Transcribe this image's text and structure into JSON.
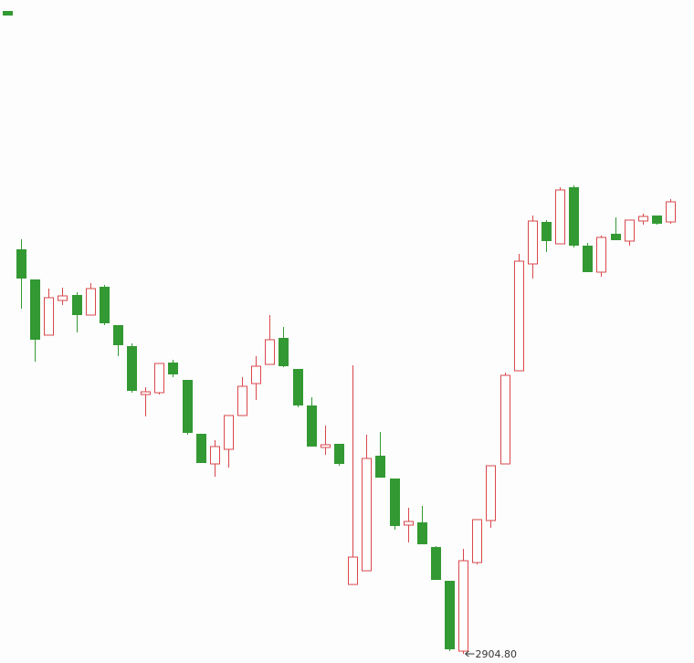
{
  "chart_data": {
    "type": "candlestick",
    "up_color": "#d9474b",
    "down_color": "#339933",
    "ylim": [
      2898.8,
      3334.4
    ],
    "open": [
      3170.6,
      3150.8,
      3114.2,
      3137.0,
      3140.6,
      3127.4,
      3146.0,
      3120.8,
      3107.0,
      3075.2,
      3076.4,
      3096.2,
      3084.8,
      3049.4,
      3029.6,
      3039.2,
      3061.4,
      3082.4,
      3095.0,
      3112.4,
      3092.0,
      3068.0,
      3040.4,
      3042.8,
      2950.4,
      2959.4,
      3035.0,
      3020.0,
      2989.4,
      2991.2,
      2975.0,
      2952.8,
      2906.6,
      2964.8,
      2992.4,
      3029.6,
      3090.8,
      3161.0,
      3188.6,
      3174.2,
      3211.4,
      3173.0,
      3155.6,
      3180.8,
      3176.0,
      3189.2,
      3192.8,
      3188.6
    ],
    "high": [
      3177.2,
      3150.8,
      3144.8,
      3145.4,
      3142.4,
      3148.4,
      3147.2,
      3120.8,
      3108.8,
      3080.0,
      3095.6,
      3098.0,
      3084.8,
      3049.4,
      3045.2,
      3061.4,
      3086.6,
      3100.4,
      3127.4,
      3119.6,
      3092.0,
      3073.4,
      3054.8,
      3042.8,
      3094.4,
      3048.8,
      3050.6,
      3020.0,
      3000.8,
      3002.0,
      2975.6,
      2952.8,
      2973.8,
      2993.0,
      3028.4,
      3089.6,
      3167.6,
      3192.8,
      3189.8,
      3211.4,
      3212.6,
      3174.8,
      3179.6,
      3191.6,
      3189.8,
      3194.0,
      3192.8,
      3203.6
    ],
    "low": [
      3131.6,
      3096.8,
      3114.2,
      3134.0,
      3116.0,
      3127.4,
      3120.8,
      3100.4,
      3076.4,
      3060.8,
      3075.2,
      3086.6,
      3048.8,
      3030.2,
      3021.2,
      3027.2,
      3061.4,
      3071.6,
      3095.0,
      3093.2,
      3066.8,
      3041.0,
      3035.6,
      3028.4,
      2950.4,
      2959.4,
      3020.6,
      2986.4,
      2978.0,
      2976.8,
      2953.4,
      2906.6,
      2904.8,
      2963.6,
      2987.6,
      3029.6,
      3090.8,
      3151.4,
      3168.8,
      3174.2,
      3171.8,
      3155.6,
      3152.6,
      3176.6,
      3173.0,
      3186.8,
      3186.8,
      3187.4
    ],
    "close": [
      3151.4,
      3111.2,
      3138.8,
      3140.0,
      3127.4,
      3144.8,
      3122.0,
      3107.6,
      3077.6,
      3077.0,
      3095.6,
      3088.4,
      3050.0,
      3030.2,
      3041.0,
      3061.4,
      3080.6,
      3093.8,
      3111.2,
      3093.8,
      3068.0,
      3041.0,
      3042.2,
      3029.6,
      2968.4,
      3033.2,
      3020.6,
      2988.8,
      2991.8,
      2976.8,
      2953.4,
      2907.8,
      2966.0,
      2993.0,
      3028.4,
      3087.8,
      3162.8,
      3189.2,
      3176.0,
      3209.6,
      3173.0,
      3155.6,
      3178.4,
      3176.6,
      3189.8,
      3192.2,
      3187.4,
      3201.8
    ],
    "annotation": {
      "index": 32,
      "value": 2904.8,
      "label": "2904.80"
    }
  }
}
